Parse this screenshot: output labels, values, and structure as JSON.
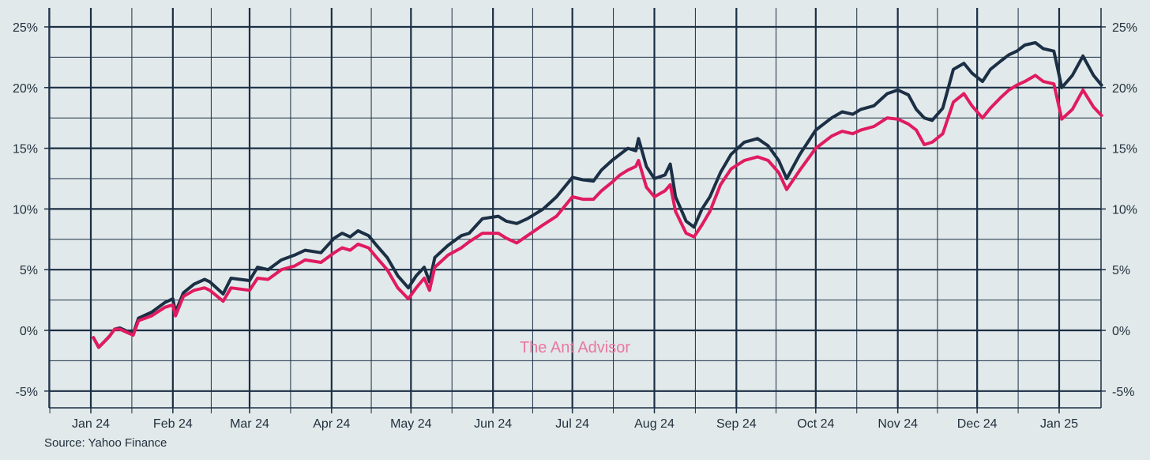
{
  "chart_data": {
    "type": "line",
    "title": "",
    "xlabel": "",
    "ylabel": "",
    "y_unit": "%",
    "ylim": [
      -6,
      26
    ],
    "y_ticks": [
      -5,
      0,
      5,
      10,
      15,
      20,
      25
    ],
    "y_tick_labels": [
      "-5%",
      "0%",
      "5%",
      "10%",
      "15%",
      "20%",
      "25%"
    ],
    "x_tick_labels": [
      "Jan 24",
      "Feb 24",
      "Mar 24",
      "Apr 24",
      "May 24",
      "Jun 24",
      "Jul 24",
      "Aug 24",
      "Sep 24",
      "Oct 24",
      "Nov 24",
      "Dec 24",
      "Jan 25"
    ],
    "x_ticks": [
      "2024-01-01",
      "2024-02-01",
      "2024-03-01",
      "2024-04-01",
      "2024-05-01",
      "2024-06-01",
      "2024-07-01",
      "2024-08-01",
      "2024-09-01",
      "2024-10-01",
      "2024-11-01",
      "2024-12-01",
      "2025-01-01"
    ],
    "grid": true,
    "series": [
      {
        "color": "#1b2f45",
        "points": [
          [
            "2024-01-02",
            -0.6
          ],
          [
            "2024-01-04",
            -1.4
          ],
          [
            "2024-01-08",
            -0.5
          ],
          [
            "2024-01-10",
            0.1
          ],
          [
            "2024-01-12",
            0.2
          ],
          [
            "2024-01-17",
            -0.3
          ],
          [
            "2024-01-19",
            1.0
          ],
          [
            "2024-01-24",
            1.5
          ],
          [
            "2024-01-29",
            2.3
          ],
          [
            "2024-02-01",
            2.6
          ],
          [
            "2024-02-02",
            1.5
          ],
          [
            "2024-02-05",
            3.1
          ],
          [
            "2024-02-09",
            3.8
          ],
          [
            "2024-02-13",
            4.2
          ],
          [
            "2024-02-15",
            4.0
          ],
          [
            "2024-02-20",
            3.0
          ],
          [
            "2024-02-23",
            4.3
          ],
          [
            "2024-03-01",
            4.1
          ],
          [
            "2024-03-04",
            5.2
          ],
          [
            "2024-03-08",
            5.0
          ],
          [
            "2024-03-13",
            5.8
          ],
          [
            "2024-03-18",
            6.2
          ],
          [
            "2024-03-22",
            6.6
          ],
          [
            "2024-03-28",
            6.4
          ],
          [
            "2024-04-02",
            7.6
          ],
          [
            "2024-04-05",
            8.0
          ],
          [
            "2024-04-08",
            7.7
          ],
          [
            "2024-04-11",
            8.2
          ],
          [
            "2024-04-15",
            7.8
          ],
          [
            "2024-04-18",
            7.0
          ],
          [
            "2024-04-22",
            6.0
          ],
          [
            "2024-04-26",
            4.5
          ],
          [
            "2024-04-30",
            3.5
          ],
          [
            "2024-05-03",
            4.5
          ],
          [
            "2024-05-06",
            5.2
          ],
          [
            "2024-05-08",
            4.0
          ],
          [
            "2024-05-10",
            6.0
          ],
          [
            "2024-05-15",
            7.0
          ],
          [
            "2024-05-20",
            7.8
          ],
          [
            "2024-05-23",
            8.0
          ],
          [
            "2024-05-28",
            9.2
          ],
          [
            "2024-06-03",
            9.4
          ],
          [
            "2024-06-06",
            9.0
          ],
          [
            "2024-06-10",
            8.8
          ],
          [
            "2024-06-14",
            9.2
          ],
          [
            "2024-06-20",
            10.0
          ],
          [
            "2024-06-25",
            11.0
          ],
          [
            "2024-07-01",
            12.6
          ],
          [
            "2024-07-05",
            12.4
          ],
          [
            "2024-07-09",
            12.3
          ],
          [
            "2024-07-12",
            13.2
          ],
          [
            "2024-07-16",
            14.0
          ],
          [
            "2024-07-19",
            14.5
          ],
          [
            "2024-07-22",
            15.0
          ],
          [
            "2024-07-25",
            14.8
          ],
          [
            "2024-07-26",
            15.8
          ],
          [
            "2024-07-29",
            13.5
          ],
          [
            "2024-08-01",
            12.5
          ],
          [
            "2024-08-05",
            12.8
          ],
          [
            "2024-08-07",
            13.7
          ],
          [
            "2024-08-09",
            11.0
          ],
          [
            "2024-08-13",
            9.0
          ],
          [
            "2024-08-16",
            8.5
          ],
          [
            "2024-08-19",
            10.0
          ],
          [
            "2024-08-22",
            11.0
          ],
          [
            "2024-08-26",
            13.0
          ],
          [
            "2024-08-30",
            14.5
          ],
          [
            "2024-09-04",
            15.5
          ],
          [
            "2024-09-09",
            15.8
          ],
          [
            "2024-09-13",
            15.2
          ],
          [
            "2024-09-17",
            14.0
          ],
          [
            "2024-09-20",
            12.5
          ],
          [
            "2024-09-25",
            14.5
          ],
          [
            "2024-10-01",
            16.5
          ],
          [
            "2024-10-07",
            17.5
          ],
          [
            "2024-10-11",
            18.0
          ],
          [
            "2024-10-15",
            17.8
          ],
          [
            "2024-10-18",
            18.2
          ],
          [
            "2024-10-23",
            18.5
          ],
          [
            "2024-10-28",
            19.5
          ],
          [
            "2024-11-01",
            19.8
          ],
          [
            "2024-11-05",
            19.4
          ],
          [
            "2024-11-08",
            18.2
          ],
          [
            "2024-11-11",
            17.5
          ],
          [
            "2024-11-14",
            17.3
          ],
          [
            "2024-11-18",
            18.3
          ],
          [
            "2024-11-22",
            21.5
          ],
          [
            "2024-11-26",
            22.0
          ],
          [
            "2024-11-29",
            21.2
          ],
          [
            "2024-12-03",
            20.5
          ],
          [
            "2024-12-06",
            21.5
          ],
          [
            "2024-12-10",
            22.2
          ],
          [
            "2024-12-13",
            22.7
          ],
          [
            "2024-12-16",
            23.0
          ],
          [
            "2024-12-19",
            23.5
          ],
          [
            "2024-12-23",
            23.7
          ],
          [
            "2024-12-26",
            23.2
          ],
          [
            "2024-12-30",
            23.0
          ],
          [
            "2025-01-02",
            20.0
          ],
          [
            "2025-01-06",
            21.0
          ],
          [
            "2025-01-10",
            22.6
          ],
          [
            "2025-01-14",
            21.0
          ],
          [
            "2025-01-17",
            20.2
          ]
        ]
      },
      {
        "color": "#e01b5f",
        "points": [
          [
            "2024-01-02",
            -0.6
          ],
          [
            "2024-01-04",
            -1.4
          ],
          [
            "2024-01-08",
            -0.5
          ],
          [
            "2024-01-10",
            0.1
          ],
          [
            "2024-01-12",
            0.1
          ],
          [
            "2024-01-17",
            -0.4
          ],
          [
            "2024-01-19",
            0.8
          ],
          [
            "2024-01-24",
            1.2
          ],
          [
            "2024-01-29",
            1.9
          ],
          [
            "2024-02-01",
            2.1
          ],
          [
            "2024-02-02",
            1.2
          ],
          [
            "2024-02-05",
            2.8
          ],
          [
            "2024-02-09",
            3.3
          ],
          [
            "2024-02-13",
            3.5
          ],
          [
            "2024-02-15",
            3.3
          ],
          [
            "2024-02-20",
            2.4
          ],
          [
            "2024-02-23",
            3.5
          ],
          [
            "2024-03-01",
            3.3
          ],
          [
            "2024-03-04",
            4.3
          ],
          [
            "2024-03-08",
            4.2
          ],
          [
            "2024-03-13",
            5.0
          ],
          [
            "2024-03-18",
            5.3
          ],
          [
            "2024-03-22",
            5.8
          ],
          [
            "2024-03-28",
            5.6
          ],
          [
            "2024-04-02",
            6.4
          ],
          [
            "2024-04-05",
            6.8
          ],
          [
            "2024-04-08",
            6.6
          ],
          [
            "2024-04-11",
            7.1
          ],
          [
            "2024-04-15",
            6.8
          ],
          [
            "2024-04-18",
            6.0
          ],
          [
            "2024-04-22",
            5.0
          ],
          [
            "2024-04-26",
            3.5
          ],
          [
            "2024-04-30",
            2.6
          ],
          [
            "2024-05-03",
            3.5
          ],
          [
            "2024-05-06",
            4.3
          ],
          [
            "2024-05-08",
            3.3
          ],
          [
            "2024-05-10",
            5.2
          ],
          [
            "2024-05-15",
            6.2
          ],
          [
            "2024-05-20",
            6.8
          ],
          [
            "2024-05-23",
            7.3
          ],
          [
            "2024-05-28",
            8.0
          ],
          [
            "2024-06-03",
            8.0
          ],
          [
            "2024-06-06",
            7.6
          ],
          [
            "2024-06-10",
            7.2
          ],
          [
            "2024-06-14",
            7.8
          ],
          [
            "2024-06-20",
            8.7
          ],
          [
            "2024-06-25",
            9.4
          ],
          [
            "2024-07-01",
            11.0
          ],
          [
            "2024-07-05",
            10.8
          ],
          [
            "2024-07-09",
            10.8
          ],
          [
            "2024-07-12",
            11.5
          ],
          [
            "2024-07-16",
            12.2
          ],
          [
            "2024-07-19",
            12.8
          ],
          [
            "2024-07-22",
            13.2
          ],
          [
            "2024-07-25",
            13.5
          ],
          [
            "2024-07-26",
            14.0
          ],
          [
            "2024-07-29",
            11.8
          ],
          [
            "2024-08-01",
            11.0
          ],
          [
            "2024-08-05",
            11.5
          ],
          [
            "2024-08-07",
            12.0
          ],
          [
            "2024-08-09",
            9.8
          ],
          [
            "2024-08-13",
            8.0
          ],
          [
            "2024-08-16",
            7.7
          ],
          [
            "2024-08-19",
            8.7
          ],
          [
            "2024-08-22",
            9.8
          ],
          [
            "2024-08-26",
            12.0
          ],
          [
            "2024-08-30",
            13.3
          ],
          [
            "2024-09-04",
            14.0
          ],
          [
            "2024-09-09",
            14.3
          ],
          [
            "2024-09-13",
            14.0
          ],
          [
            "2024-09-17",
            13.0
          ],
          [
            "2024-09-20",
            11.6
          ],
          [
            "2024-09-25",
            13.2
          ],
          [
            "2024-10-01",
            15.0
          ],
          [
            "2024-10-07",
            16.0
          ],
          [
            "2024-10-11",
            16.4
          ],
          [
            "2024-10-15",
            16.2
          ],
          [
            "2024-10-18",
            16.5
          ],
          [
            "2024-10-23",
            16.8
          ],
          [
            "2024-10-28",
            17.5
          ],
          [
            "2024-11-01",
            17.4
          ],
          [
            "2024-11-05",
            17.0
          ],
          [
            "2024-11-08",
            16.5
          ],
          [
            "2024-11-11",
            15.3
          ],
          [
            "2024-11-14",
            15.5
          ],
          [
            "2024-11-18",
            16.2
          ],
          [
            "2024-11-22",
            18.8
          ],
          [
            "2024-11-26",
            19.5
          ],
          [
            "2024-11-29",
            18.5
          ],
          [
            "2024-12-03",
            17.5
          ],
          [
            "2024-12-06",
            18.3
          ],
          [
            "2024-12-10",
            19.2
          ],
          [
            "2024-12-13",
            19.8
          ],
          [
            "2024-12-16",
            20.2
          ],
          [
            "2024-12-19",
            20.5
          ],
          [
            "2024-12-23",
            21.0
          ],
          [
            "2024-12-26",
            20.5
          ],
          [
            "2024-12-30",
            20.3
          ],
          [
            "2025-01-02",
            17.4
          ],
          [
            "2025-01-06",
            18.2
          ],
          [
            "2025-01-10",
            19.8
          ],
          [
            "2025-01-14",
            18.4
          ],
          [
            "2025-01-17",
            17.7
          ]
        ]
      }
    ]
  },
  "watermark": "The Ant Advisor",
  "source_text": "Source: Yahoo Finance"
}
